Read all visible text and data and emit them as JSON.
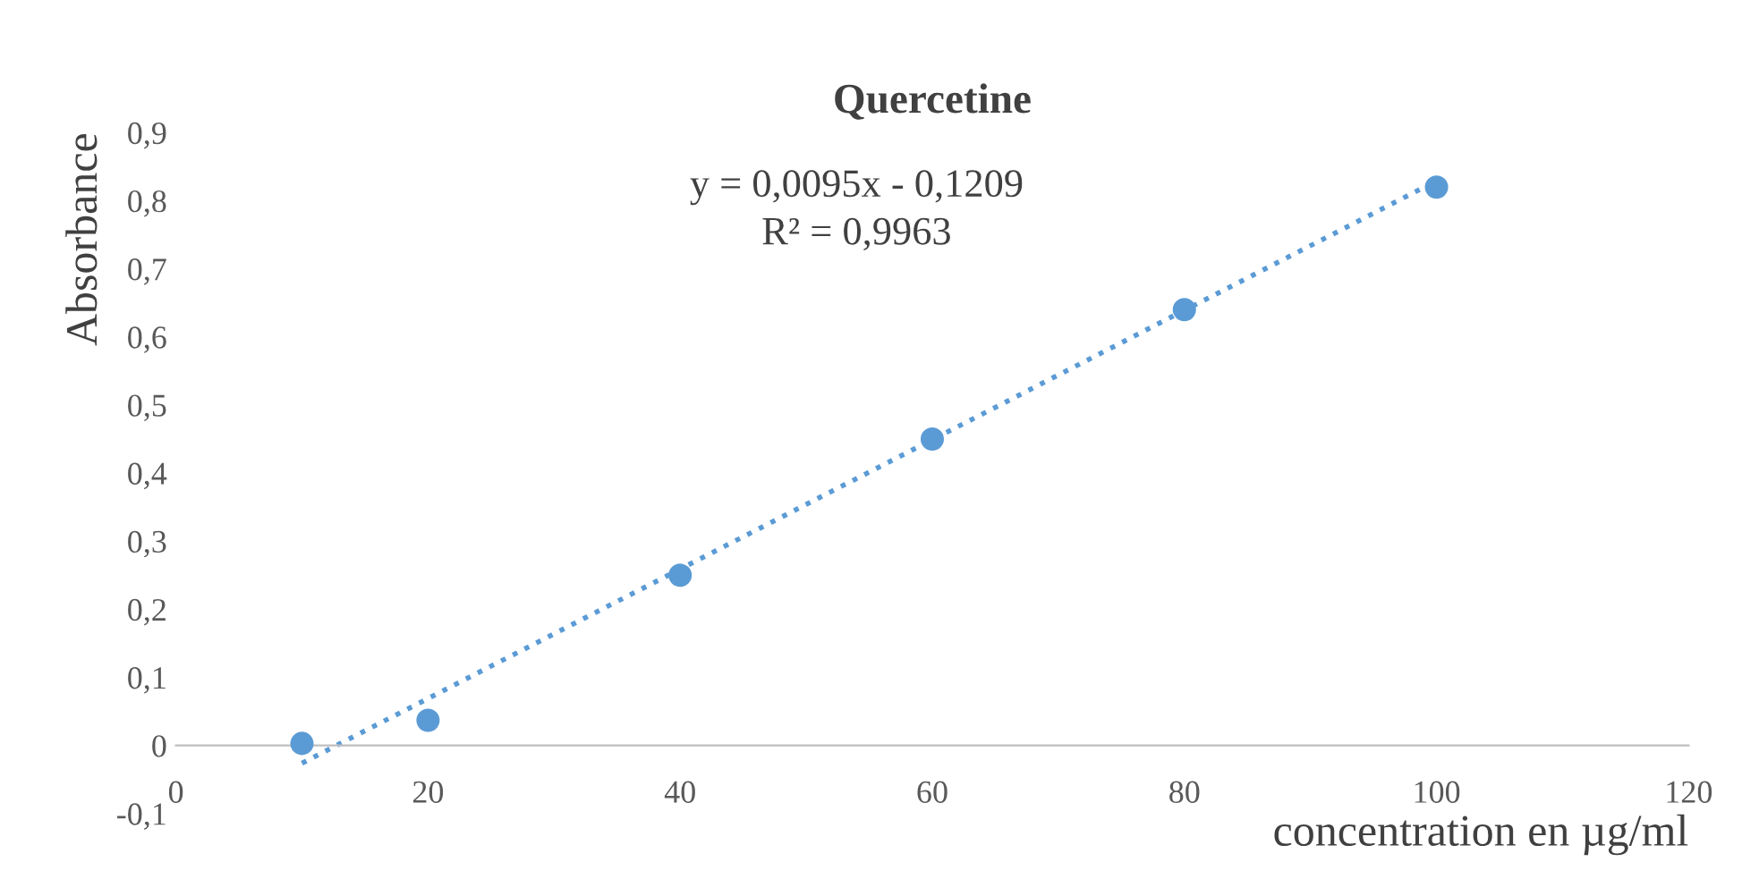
{
  "chart_data": {
    "type": "scatter",
    "title": "Quercetine",
    "xlabel": "concentration en µg/ml",
    "ylabel": "Absorbance",
    "annotations": [
      "y = 0,0095x - 0,1209",
      "R² = 0,9963"
    ],
    "series": [
      {
        "color": "#5b9bd5",
        "marker": "circle",
        "x": [
          10,
          20,
          40,
          60,
          80,
          100
        ],
        "values": [
          0.003,
          0.037,
          0.25,
          0.45,
          0.64,
          0.82
        ]
      },
      {
        "type": "line",
        "color": "#5b9bd5",
        "line_style": "dotted",
        "marker": "none",
        "x": [
          10,
          100
        ],
        "values": [
          -0.026,
          0.829
        ]
      }
    ],
    "xlim": [
      0,
      120
    ],
    "xticks": [
      0,
      20,
      40,
      60,
      80,
      100,
      120
    ],
    "ylim": [
      -0.1,
      0.9
    ],
    "yticks": [
      {
        "value": -0.1,
        "label": "-0,1"
      },
      0,
      {
        "value": 0.1,
        "label": "0,1"
      },
      {
        "value": 0.2,
        "label": "0,2"
      },
      {
        "value": 0.3,
        "label": "0,3"
      },
      {
        "value": 0.4,
        "label": "0,4"
      },
      {
        "value": 0.5,
        "label": "0,5"
      },
      {
        "value": 0.6,
        "label": "0,6"
      },
      {
        "value": 0.7,
        "label": "0,7"
      },
      {
        "value": 0.8,
        "label": "0,8"
      },
      {
        "value": 0.9,
        "label": "0,9"
      }
    ],
    "grid": false,
    "legend": false
  }
}
